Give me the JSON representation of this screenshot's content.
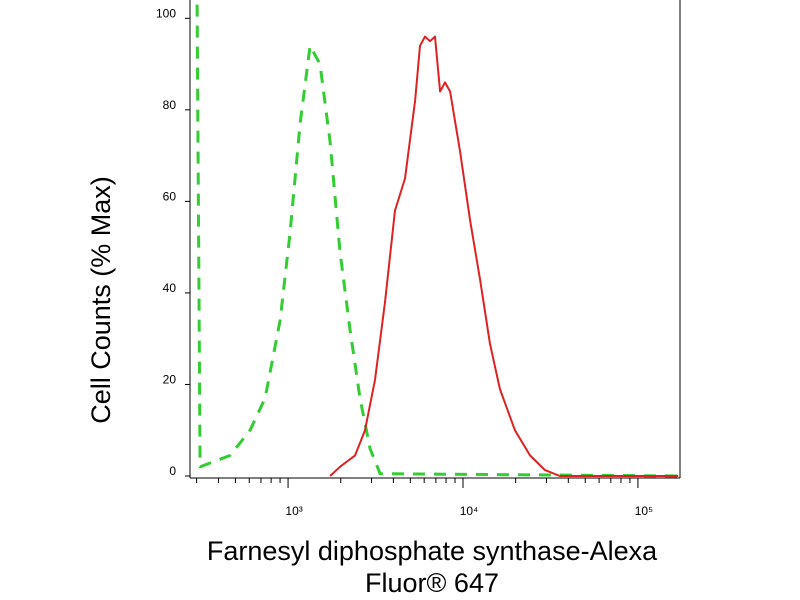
{
  "chart_data": {
    "type": "line",
    "ylabel": "Cell Counts (% Max)",
    "xlabel": [
      "Farnesyl diphosphate synthase-Alexa",
      "Fluor® 647"
    ],
    "xscale": "log",
    "xlim": [
      275,
      174000
    ],
    "xticks": [
      {
        "value": 1000,
        "label": "10³"
      },
      {
        "value": 10000,
        "label": "10⁴"
      },
      {
        "value": 100000,
        "label": "10⁵"
      }
    ],
    "xminorticks": [
      300,
      400,
      500,
      600,
      700,
      800,
      900,
      2000,
      3000,
      4000,
      5000,
      6000,
      7000,
      8000,
      9000,
      20000,
      30000,
      40000,
      50000,
      60000,
      70000,
      80000,
      90000
    ],
    "ylim": [
      0,
      104
    ],
    "yticks": [
      0,
      20,
      40,
      60,
      80,
      100
    ],
    "series": [
      {
        "color": "#33cc33",
        "dashed": true,
        "x": [
          302,
          314,
          467,
          607,
          739,
          900,
          1026,
          1171,
          1336,
          1523,
          1738,
          1982,
          2261,
          2578,
          2941,
          3356,
          174000
        ],
        "values": [
          103,
          2,
          4.5,
          10,
          17,
          34,
          53,
          77,
          94,
          90,
          73,
          49,
          32,
          17,
          6,
          0.5,
          0
        ]
      },
      {
        "color": "#dd2222",
        "dashed": false,
        "x": [
          1738,
          1982,
          2415,
          2754,
          3141,
          3581,
          4085,
          4663,
          5320,
          5675,
          6067,
          6474,
          6918,
          7396,
          7889,
          8433,
          9616,
          10965,
          12503,
          14256,
          16255,
          19815,
          24155,
          29444,
          35810,
          170000
        ],
        "values": [
          0,
          2,
          4.5,
          10,
          21,
          38,
          58,
          65,
          82,
          94,
          96,
          95,
          96,
          84,
          86,
          84,
          71,
          56,
          43,
          29,
          19,
          10,
          4.5,
          1.3,
          0,
          0
        ]
      }
    ]
  }
}
